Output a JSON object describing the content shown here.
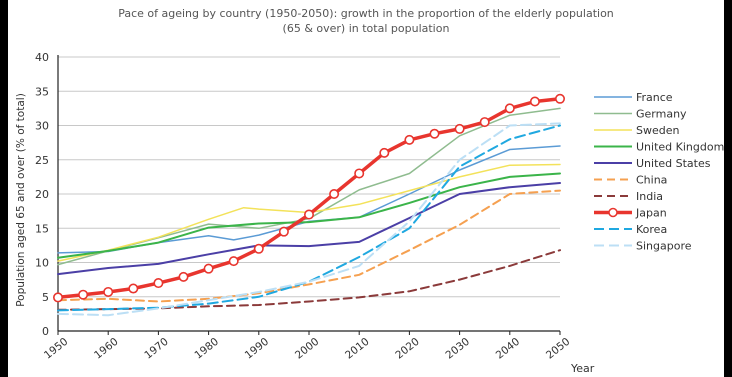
{
  "chart_data": {
    "type": "line",
    "title_line1": "Pace of ageing by country (1950-2050): growth in the proportion of the elderly population",
    "title_line2": "(65 & over) in total population",
    "ylabel": "Population aged 65 and over (% of total)",
    "xlabel": "Year",
    "ylim": [
      0,
      40
    ],
    "xlim": [
      1950,
      2050
    ],
    "yticks": [
      "0",
      "5",
      "10",
      "15",
      "20",
      "25",
      "30",
      "35",
      "40"
    ],
    "xticks": [
      "1950",
      "1960",
      "1970",
      "1980",
      "1990",
      "2000",
      "2010",
      "2020",
      "2030",
      "2040",
      "2050"
    ],
    "grid": "horizontal",
    "legend_position": "right",
    "series": [
      {
        "name": "France",
        "color": "#5b9bd5",
        "width": 1.5,
        "dash": "",
        "x": [
          1950,
          1960,
          1970,
          1980,
          1985,
          1990,
          2000,
          2010,
          2020,
          2030,
          2040,
          2050
        ],
        "y": [
          11.4,
          11.6,
          12.9,
          13.9,
          13.3,
          14.0,
          16.0,
          16.6,
          20.0,
          23.5,
          26.5,
          27.0
        ]
      },
      {
        "name": "Germany",
        "color": "#8fbc8f",
        "width": 1.5,
        "dash": "",
        "x": [
          1950,
          1960,
          1970,
          1980,
          1990,
          2000,
          2010,
          2020,
          2030,
          2040,
          2050
        ],
        "y": [
          9.7,
          11.7,
          13.6,
          15.6,
          15.0,
          16.4,
          20.6,
          23.0,
          28.5,
          31.5,
          32.5
        ]
      },
      {
        "name": "Sweden",
        "color": "#f3e25a",
        "width": 1.5,
        "dash": "",
        "x": [
          1950,
          1960,
          1970,
          1980,
          1987,
          1990,
          2000,
          2010,
          2020,
          2030,
          2040,
          2050
        ],
        "y": [
          10.2,
          11.8,
          13.7,
          16.3,
          18.0,
          17.8,
          17.3,
          18.5,
          20.5,
          22.5,
          24.2,
          24.3
        ]
      },
      {
        "name": "United Kingdom",
        "color": "#3bb44a",
        "width": 2,
        "dash": "",
        "x": [
          1950,
          1960,
          1970,
          1980,
          1990,
          2000,
          2010,
          2020,
          2030,
          2040,
          2050
        ],
        "y": [
          10.7,
          11.7,
          12.9,
          15.1,
          15.7,
          15.9,
          16.6,
          18.7,
          21.0,
          22.5,
          23.0
        ]
      },
      {
        "name": "United States",
        "color": "#4b3fa6",
        "width": 2,
        "dash": "",
        "x": [
          1950,
          1960,
          1970,
          1980,
          1990,
          2000,
          2010,
          2020,
          2030,
          2040,
          2050
        ],
        "y": [
          8.3,
          9.2,
          9.8,
          11.2,
          12.5,
          12.4,
          13.0,
          16.5,
          20.0,
          21.0,
          21.6
        ]
      },
      {
        "name": "China",
        "color": "#f5a050",
        "width": 2,
        "dash": "8 5",
        "x": [
          1950,
          1960,
          1970,
          1980,
          1990,
          2000,
          2010,
          2020,
          2030,
          2040,
          2050
        ],
        "y": [
          4.5,
          4.7,
          4.3,
          4.7,
          5.5,
          6.8,
          8.2,
          11.8,
          15.5,
          20.0,
          20.5
        ]
      },
      {
        "name": "India",
        "color": "#8b3a3a",
        "width": 2,
        "dash": "8 5",
        "x": [
          1950,
          1960,
          1970,
          1980,
          1990,
          2000,
          2010,
          2020,
          2030,
          2040,
          2050
        ],
        "y": [
          3.1,
          3.2,
          3.3,
          3.6,
          3.8,
          4.3,
          4.9,
          5.8,
          7.5,
          9.5,
          11.8
        ]
      },
      {
        "name": "Japan",
        "color": "#e8352e",
        "width": 3.5,
        "dash": "",
        "x": [
          1950,
          1955,
          1960,
          1965,
          1970,
          1975,
          1980,
          1985,
          1990,
          1995,
          2000,
          2005,
          2010,
          2015,
          2020,
          2025,
          2030,
          2035,
          2040,
          2045,
          2050
        ],
        "y": [
          4.9,
          5.3,
          5.7,
          6.2,
          7.0,
          7.9,
          9.1,
          10.2,
          12.0,
          14.5,
          17.0,
          20.0,
          23.0,
          26.0,
          27.9,
          28.8,
          29.5,
          30.5,
          32.5,
          33.5,
          33.9
        ]
      },
      {
        "name": "Korea",
        "color": "#1fa8e0",
        "width": 2,
        "dash": "10 5",
        "x": [
          1950,
          1960,
          1970,
          1980,
          1990,
          2000,
          2010,
          2020,
          2030,
          2040,
          2050
        ],
        "y": [
          3.0,
          3.2,
          3.4,
          4.0,
          5.0,
          7.2,
          10.8,
          15.0,
          24.0,
          28.0,
          30.0
        ]
      },
      {
        "name": "Singapore",
        "color": "#bcdff5",
        "width": 2,
        "dash": "10 5",
        "x": [
          1950,
          1960,
          1970,
          1980,
          1990,
          2000,
          2010,
          2020,
          2030,
          2040,
          2050
        ],
        "y": [
          2.5,
          2.3,
          3.3,
          4.5,
          5.7,
          7.2,
          9.5,
          16.0,
          25.0,
          30.0,
          30.3
        ]
      }
    ]
  }
}
